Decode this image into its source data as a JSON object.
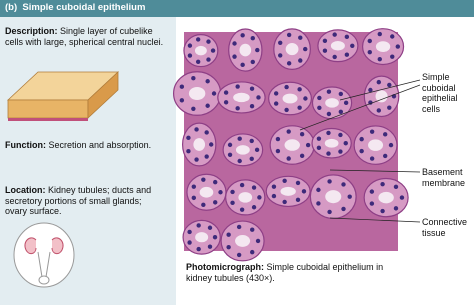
{
  "header": {
    "title": "(b)  Simple cuboidal epithelium"
  },
  "sections": [
    {
      "label": "Description:",
      "text": "Single layer of cubelike cells with large, spherical central nuclei."
    },
    {
      "label": "Function:",
      "text": "Secretion and absorption."
    },
    {
      "label": "Location:",
      "text": "Kidney tubules; ducts and secretory portions of small glands; ovary surface."
    }
  ],
  "micrograph": {
    "label": "Photomicrograph:",
    "caption": "Simple cuboidal epithelium in kidney tubules (430×)."
  },
  "callouts": [
    "Simple cuboidal epithelial cells",
    "Basement membrane",
    "Connective tissue"
  ]
}
